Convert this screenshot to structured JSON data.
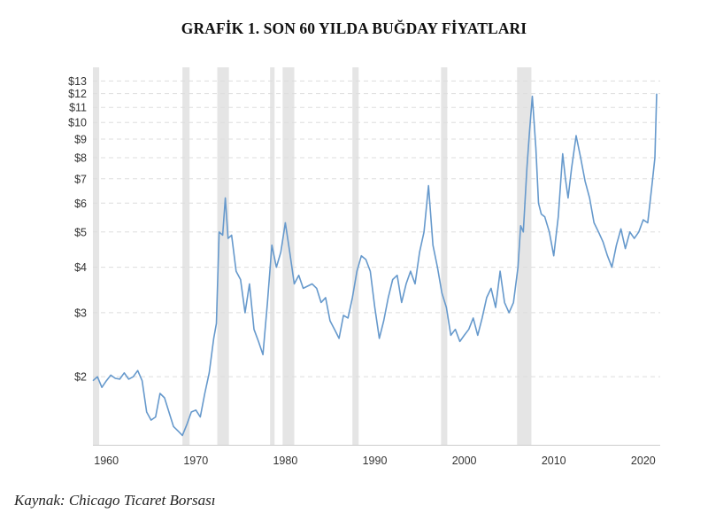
{
  "title": "GRAFİK 1. SON 60 YILDA BUĞDAY FİYATLARI",
  "source": "Kaynak: Chicago Ticaret Borsası",
  "chart_data": {
    "type": "line",
    "title": "GRAFİK 1. SON 60 YILDA BUĞDAY FİYATLARI",
    "xlabel": "",
    "ylabel": "",
    "y_scale": "log",
    "xlim": [
      1958.5,
      2021.5
    ],
    "ylim": [
      1.3,
      13.4
    ],
    "grid": "horizontal dashed",
    "legend": "none",
    "x_ticks": [
      1960,
      1970,
      1980,
      1990,
      2000,
      2010,
      2020
    ],
    "x_tick_labels": [
      "1960",
      "1970",
      "1980",
      "1990",
      "2000",
      "2010",
      "2020"
    ],
    "y_ticks": [
      2,
      3,
      4,
      5,
      6,
      7,
      8,
      9,
      10,
      11,
      12,
      13
    ],
    "y_tick_labels": [
      "$2",
      "$3",
      "$4",
      "$5",
      "$6",
      "$7",
      "$8",
      "$9",
      "$10",
      "$11",
      "$12",
      "$13"
    ],
    "shaded_periods": [
      [
        1958.5,
        1959.2
      ],
      [
        1968.5,
        1969.3
      ],
      [
        1972.4,
        1973.7
      ],
      [
        1978.3,
        1978.8
      ],
      [
        1979.7,
        1981.0
      ],
      [
        1987.5,
        1988.2
      ],
      [
        1997.4,
        1998.1
      ],
      [
        2005.9,
        2007.5
      ]
    ],
    "colors": {
      "line": "#6699cc",
      "shade": "#e5e5e5",
      "grid": "#dddddd"
    },
    "series": [
      {
        "x": [
          1958.5,
          1959.0,
          1959.5,
          1960.0,
          1960.5,
          1961.0,
          1961.5,
          1962.0,
          1962.5,
          1963.0,
          1963.5,
          1964.0,
          1964.5,
          1965.0,
          1965.5,
          1966.0,
          1966.5,
          1967.0,
          1967.5,
          1968.0,
          1968.5,
          1969.0,
          1969.5,
          1970.0,
          1970.5,
          1971.0,
          1971.5,
          1972.0,
          1972.3,
          1972.6,
          1973.0,
          1973.3,
          1973.6,
          1974.0,
          1974.5,
          1975.0,
          1975.5,
          1976.0,
          1976.5,
          1977.0,
          1977.5,
          1978.0,
          1978.5,
          1979.0,
          1979.5,
          1980.0,
          1980.5,
          1981.0,
          1981.5,
          1982.0,
          1982.5,
          1983.0,
          1983.5,
          1984.0,
          1984.5,
          1985.0,
          1985.5,
          1986.0,
          1986.5,
          1987.0,
          1987.5,
          1988.0,
          1988.5,
          1989.0,
          1989.5,
          1990.0,
          1990.5,
          1991.0,
          1991.5,
          1992.0,
          1992.5,
          1993.0,
          1993.5,
          1994.0,
          1994.5,
          1995.0,
          1995.5,
          1996.0,
          1996.5,
          1997.0,
          1997.5,
          1998.0,
          1998.5,
          1999.0,
          1999.5,
          2000.0,
          2000.5,
          2001.0,
          2001.5,
          2002.0,
          2002.5,
          2003.0,
          2003.5,
          2004.0,
          2004.5,
          2005.0,
          2005.5,
          2006.0,
          2006.3,
          2006.6,
          2007.0,
          2007.3,
          2007.6,
          2008.0,
          2008.3,
          2008.6,
          2009.0,
          2009.5,
          2010.0,
          2010.5,
          2011.0,
          2011.3,
          2011.6,
          2012.0,
          2012.5,
          2013.0,
          2013.5,
          2014.0,
          2014.5,
          2015.0,
          2015.5,
          2016.0,
          2016.5,
          2017.0,
          2017.5,
          2018.0,
          2018.5,
          2019.0,
          2019.5,
          2020.0,
          2020.5,
          2021.0,
          2021.3,
          2021.5
        ],
        "y": [
          1.95,
          2.0,
          1.87,
          1.95,
          2.02,
          1.98,
          1.97,
          2.05,
          1.97,
          2.0,
          2.08,
          1.95,
          1.6,
          1.52,
          1.55,
          1.8,
          1.75,
          1.6,
          1.46,
          1.42,
          1.38,
          1.48,
          1.6,
          1.62,
          1.55,
          1.8,
          2.05,
          2.55,
          2.8,
          5.0,
          4.9,
          6.2,
          4.8,
          4.9,
          3.9,
          3.7,
          3.0,
          3.6,
          2.7,
          2.5,
          2.3,
          3.2,
          4.6,
          4.0,
          4.4,
          5.3,
          4.4,
          3.6,
          3.8,
          3.5,
          3.55,
          3.6,
          3.5,
          3.2,
          3.3,
          2.85,
          2.7,
          2.55,
          2.95,
          2.9,
          3.3,
          3.9,
          4.3,
          4.2,
          3.9,
          3.1,
          2.55,
          2.85,
          3.3,
          3.7,
          3.8,
          3.2,
          3.6,
          3.9,
          3.6,
          4.4,
          5.0,
          6.7,
          4.6,
          4.0,
          3.4,
          3.1,
          2.6,
          2.7,
          2.5,
          2.6,
          2.7,
          2.9,
          2.6,
          2.9,
          3.3,
          3.5,
          3.1,
          3.9,
          3.2,
          3.0,
          3.2,
          4.0,
          5.2,
          5.0,
          7.5,
          9.5,
          11.8,
          8.5,
          6.0,
          5.6,
          5.5,
          5.0,
          4.3,
          5.5,
          8.2,
          7.0,
          6.2,
          7.5,
          9.2,
          8.0,
          6.9,
          6.2,
          5.3,
          5.0,
          4.7,
          4.3,
          4.0,
          4.6,
          5.1,
          4.5,
          5.0,
          4.8,
          5.0,
          5.4,
          5.3,
          6.8,
          8.0,
          12.0
        ],
        "y_unit": "$/bushel"
      }
    ]
  }
}
